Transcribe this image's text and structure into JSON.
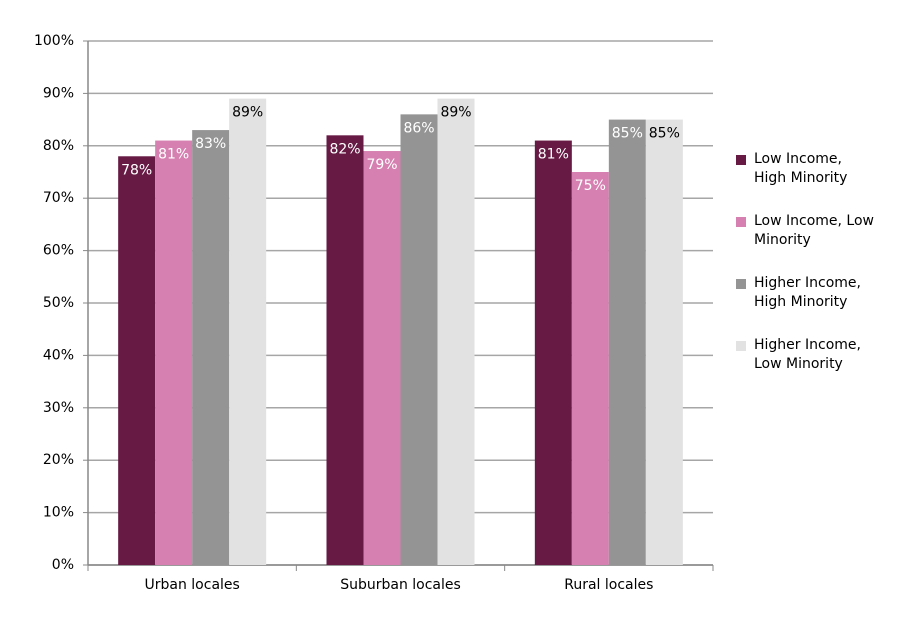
{
  "chart_data": {
    "type": "bar",
    "categories": [
      "Urban locales",
      "Suburban locales",
      "Rural locales"
    ],
    "series": [
      {
        "name": "Low Income, High Minority",
        "color": "#661a44",
        "values": [
          78,
          82,
          81
        ],
        "value_labels": [
          "78%",
          "82%",
          "81%"
        ]
      },
      {
        "name": "Low Income, Low Minority",
        "color": "#d580b0",
        "values": [
          81,
          79,
          75
        ],
        "value_labels": [
          "81%",
          "79%",
          "75%"
        ]
      },
      {
        "name": "Higher Income, High Minority",
        "color": "#949494",
        "values": [
          83,
          86,
          85
        ],
        "value_labels": [
          "83%",
          "86%",
          "85%"
        ]
      },
      {
        "name": "Higher Income, Low Minority",
        "color": "#e2e2e2",
        "values": [
          89,
          89,
          85
        ],
        "value_labels": [
          "89%",
          "89%",
          "85%"
        ]
      }
    ],
    "ylim": [
      0,
      100
    ],
    "yticks": [
      {
        "value": 0,
        "label": "0%"
      },
      {
        "value": 10,
        "label": "10%"
      },
      {
        "value": 20,
        "label": "20%"
      },
      {
        "value": 30,
        "label": "30%"
      },
      {
        "value": 40,
        "label": "40%"
      },
      {
        "value": 50,
        "label": "50%"
      },
      {
        "value": 60,
        "label": "60%"
      },
      {
        "value": 70,
        "label": "70%"
      },
      {
        "value": 80,
        "label": "80%"
      },
      {
        "value": 90,
        "label": "90%"
      },
      {
        "value": 100,
        "label": "100%"
      }
    ],
    "grid": true,
    "legend": "right"
  }
}
